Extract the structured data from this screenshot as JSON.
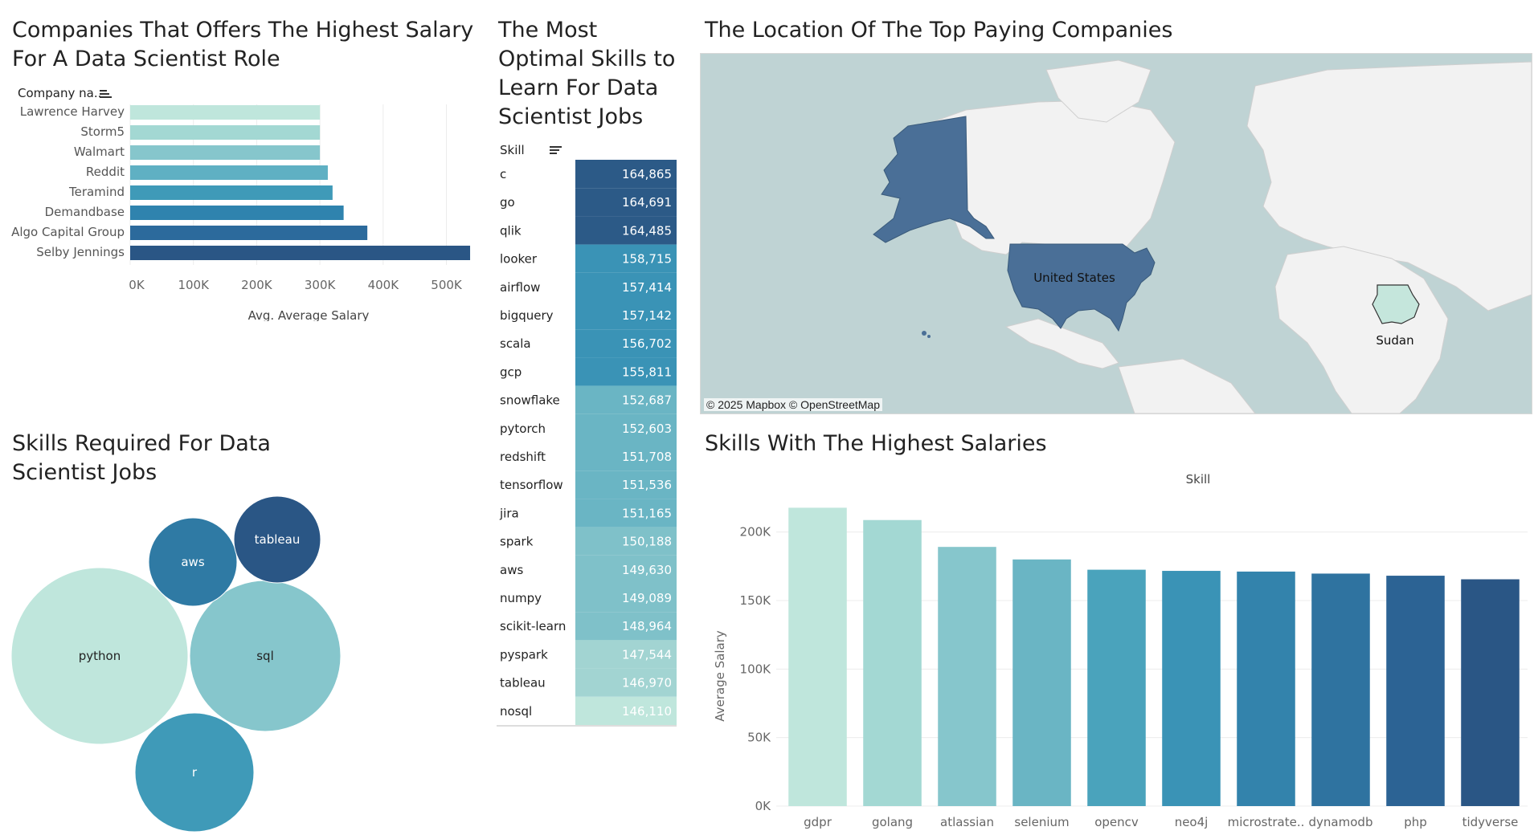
{
  "titles": {
    "companies": "Companies That Offers The Highest Salary For A Data Scientist Role",
    "optimal_skills": "The Most Optimal Skills to Learn For Data Scientist Jobs",
    "location": "The Location Of The Top Paying Companies",
    "skills_required": "Skills Required For Data Scientist Jobs",
    "highest_salaries": "Skills With The Highest Salaries"
  },
  "map": {
    "credit": "© 2025 Mapbox © OpenStreetMap",
    "labels": [
      "United States",
      "Sudan"
    ],
    "colors": {
      "water": "#bfd3d4",
      "land": "#f2f2f2",
      "us": "#4a6f97",
      "sudan": "#c5e6dc"
    }
  },
  "chart_data": [
    {
      "id": "companies",
      "type": "bar",
      "orientation": "horizontal",
      "header": "Company na..",
      "categories": [
        "Lawrence Harvey",
        "Storm5",
        "Walmart",
        "Reddit",
        "Teramind",
        "Demandbase",
        "Algo Capital Group",
        "Selby Jennings"
      ],
      "values": [
        300000,
        300000,
        300000,
        312500,
        320000,
        337500,
        375000,
        537500
      ],
      "xlabel": "Avg. Average Salary",
      "xlim": [
        0,
        540000
      ],
      "ticks": [
        "0K",
        "100K",
        "200K",
        "300K",
        "400K",
        "500K"
      ],
      "colors": [
        "#bfe6dc",
        "#a3d8d3",
        "#86c6cc",
        "#5fb0c3",
        "#3f9ab8",
        "#2f83ae",
        "#2c6a9c",
        "#2a5685"
      ]
    },
    {
      "id": "optimal_skills",
      "type": "table",
      "header": "Skill",
      "skills": [
        "c",
        "go",
        "qlik",
        "looker",
        "airflow",
        "bigquery",
        "scala",
        "gcp",
        "snowflake",
        "pytorch",
        "redshift",
        "tensorflow",
        "jira",
        "spark",
        "aws",
        "numpy",
        "scikit-learn",
        "pyspark",
        "tableau",
        "nosql"
      ],
      "values": [
        "164,865",
        "164,691",
        "164,485",
        "158,715",
        "157,414",
        "157,142",
        "156,702",
        "155,811",
        "152,687",
        "152,603",
        "151,708",
        "151,536",
        "151,165",
        "150,188",
        "149,630",
        "149,089",
        "148,964",
        "147,544",
        "146,970",
        "146,110"
      ],
      "colors": [
        "#2c5a87",
        "#2c5a87",
        "#2c5a87",
        "#3a93b6",
        "#3a93b6",
        "#3a93b6",
        "#3a93b6",
        "#3a93b6",
        "#6ab5c4",
        "#6ab5c4",
        "#6ab5c4",
        "#6ab5c4",
        "#6ab5c4",
        "#7fc1c9",
        "#7fc1c9",
        "#7fc1c9",
        "#7fc1c9",
        "#a2d4d2",
        "#a2d4d2",
        "#bfe6dc"
      ]
    },
    {
      "id": "skills_required",
      "type": "bubble",
      "labels": [
        "python",
        "sql",
        "r",
        "aws",
        "tableau"
      ],
      "colors": [
        "#bfe6dc",
        "#86c6cc",
        "#3f9ab8",
        "#2f7aa4",
        "#2a5685"
      ]
    },
    {
      "id": "highest_salaries",
      "type": "bar",
      "header": "Skill",
      "categories": [
        "gdpr",
        "golang",
        "atlassian",
        "selenium",
        "opencv",
        "neo4j",
        "microstrate..",
        "dynamodb",
        "php",
        "tidyverse"
      ],
      "values": [
        217738,
        208750,
        189155,
        180000,
        172500,
        171655,
        171147,
        169670,
        168125,
        165513
      ],
      "ylabel": "Average Salary",
      "ylim": [
        0,
        225000
      ],
      "ticks": [
        "0K",
        "50K",
        "100K",
        "150K",
        "200K"
      ],
      "colors": [
        "#bfe6dc",
        "#a3d8d3",
        "#86c6cc",
        "#6ab5c4",
        "#4aa3bc",
        "#3a93b6",
        "#3383ac",
        "#2f73a0",
        "#2c6394",
        "#2a5685"
      ]
    }
  ]
}
